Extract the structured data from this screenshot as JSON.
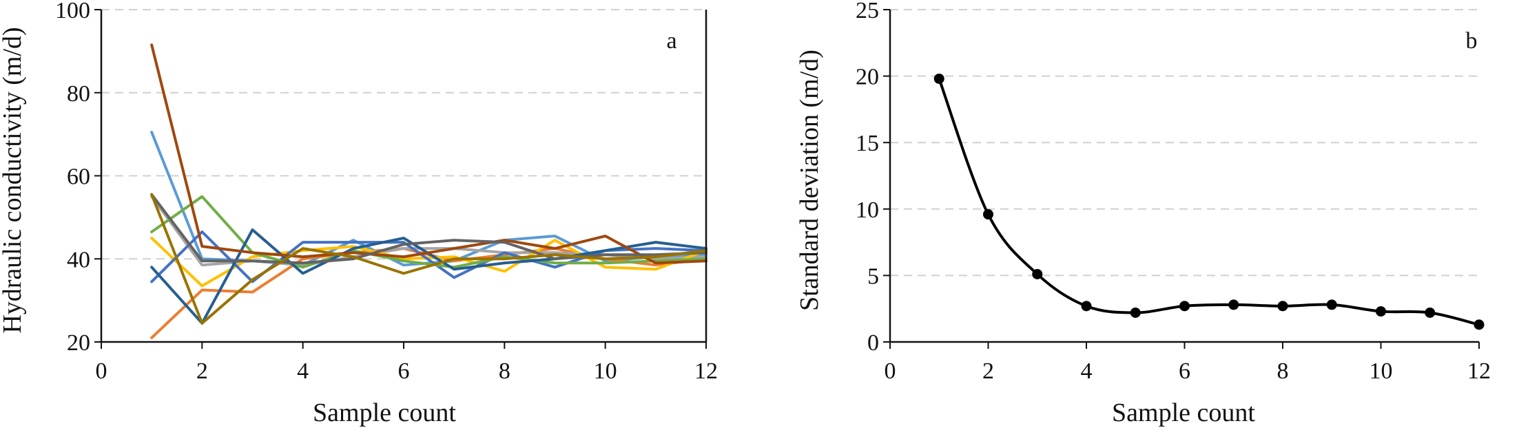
{
  "chart_data": [
    {
      "panel_label": "a",
      "type": "line",
      "xlabel": "Sample count",
      "ylabel": "Hydraulic conductivity (m/d)",
      "xlim": [
        0,
        12
      ],
      "ylim": [
        20,
        100
      ],
      "x_ticks": [
        "0",
        "2",
        "4",
        "6",
        "8",
        "10",
        "12"
      ],
      "y_ticks": [
        "20",
        "40",
        "60",
        "80",
        "100"
      ],
      "grid": "dashed horizontal",
      "x": [
        1,
        2,
        3,
        4,
        5,
        6,
        7,
        8,
        9,
        10,
        11,
        12
      ],
      "series": [
        {
          "color": "#5b9bd5",
          "values": [
            70.5,
            40.0,
            39.5,
            38.5,
            44.5,
            38.5,
            39.5,
            44.5,
            45.5,
            39.5,
            40.5,
            41.0
          ]
        },
        {
          "color": "#ed7d31",
          "values": [
            21.0,
            32.5,
            32.0,
            40.0,
            41.5,
            42.5,
            39.5,
            41.0,
            42.5,
            40.0,
            38.5,
            40.0
          ]
        },
        {
          "color": "#a5a5a5",
          "values": [
            55.0,
            38.5,
            39.5,
            38.5,
            40.5,
            42.5,
            42.5,
            41.5,
            41.5,
            41.0,
            40.0,
            40.5
          ]
        },
        {
          "color": "#ffc000",
          "values": [
            45.0,
            33.5,
            40.5,
            42.0,
            43.0,
            40.0,
            40.5,
            37.0,
            44.5,
            38.0,
            37.5,
            42.0
          ]
        },
        {
          "color": "#4472c4",
          "values": [
            34.5,
            46.5,
            34.5,
            44.0,
            44.0,
            44.0,
            35.5,
            41.5,
            38.0,
            42.0,
            42.5,
            42.0
          ]
        },
        {
          "color": "#70ad47",
          "values": [
            46.5,
            55.0,
            41.5,
            38.0,
            42.0,
            39.5,
            38.0,
            40.5,
            39.0,
            39.0,
            39.5,
            40.0
          ]
        },
        {
          "color": "#255e91",
          "values": [
            38.0,
            24.5,
            47.0,
            36.5,
            42.5,
            45.0,
            37.5,
            39.0,
            40.0,
            42.0,
            44.0,
            42.5
          ]
        },
        {
          "color": "#9e480e",
          "values": [
            91.5,
            43.0,
            41.5,
            40.5,
            41.5,
            40.5,
            42.5,
            44.5,
            42.5,
            45.5,
            39.0,
            39.5
          ]
        },
        {
          "color": "#636363",
          "values": [
            55.5,
            39.5,
            39.5,
            39.0,
            40.0,
            43.5,
            44.5,
            44.0,
            40.0,
            41.0,
            41.0,
            41.5
          ]
        },
        {
          "color": "#997300",
          "values": [
            55.5,
            24.5,
            35.0,
            42.5,
            40.5,
            36.5,
            40.0,
            40.0,
            41.0,
            40.0,
            40.5,
            42.0
          ]
        }
      ]
    },
    {
      "panel_label": "b",
      "type": "line",
      "xlabel": "Sample count",
      "ylabel": "Standard deviation  (m/d)",
      "xlim": [
        0,
        12
      ],
      "ylim": [
        0,
        25
      ],
      "x_ticks": [
        "0",
        "2",
        "4",
        "6",
        "8",
        "10",
        "12"
      ],
      "y_ticks": [
        "0",
        "5",
        "10",
        "15",
        "20",
        "25"
      ],
      "grid": "dashed horizontal",
      "x": [
        1,
        2,
        3,
        4,
        5,
        6,
        7,
        8,
        9,
        10,
        11,
        12
      ],
      "series": [
        {
          "color": "#000000",
          "values": [
            19.8,
            9.6,
            5.1,
            2.7,
            2.2,
            2.7,
            2.8,
            2.7,
            2.8,
            2.3,
            2.2,
            1.3
          ]
        }
      ]
    }
  ]
}
